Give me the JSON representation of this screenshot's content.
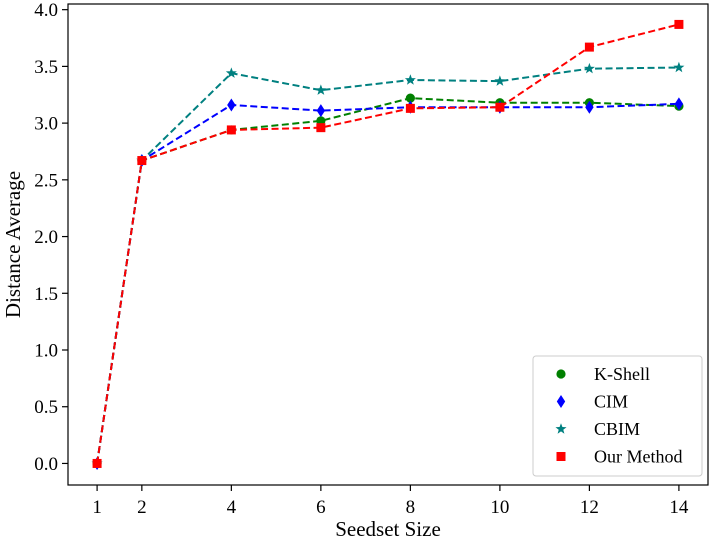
{
  "chart_data": {
    "type": "line",
    "title": "",
    "xlabel": "Seedset Size",
    "ylabel": "Distance Average",
    "x": [
      1,
      2,
      4,
      6,
      8,
      10,
      12,
      14
    ],
    "xticks": [
      "1",
      "2",
      "4",
      "6",
      "8",
      "10",
      "12",
      "14"
    ],
    "yticks": [
      "0.0",
      "0.5",
      "1.0",
      "1.5",
      "2.0",
      "2.5",
      "3.0",
      "3.5",
      "4.0"
    ],
    "xlim": [
      0.35,
      14.65
    ],
    "ylim": [
      -0.19,
      4.05
    ],
    "grid": false,
    "legend_position": "bottom-right",
    "series": [
      {
        "name": "K-Shell",
        "color": "#008000",
        "marker": "circle",
        "values": [
          0.0,
          2.67,
          2.94,
          3.02,
          3.22,
          3.18,
          3.18,
          3.15
        ]
      },
      {
        "name": "CIM",
        "color": "#0000ff",
        "marker": "diamond",
        "values": [
          0.0,
          2.67,
          3.16,
          3.11,
          3.14,
          3.14,
          3.14,
          3.17
        ]
      },
      {
        "name": "CBIM",
        "color": "#008080",
        "marker": "star",
        "values": [
          0.0,
          2.67,
          3.44,
          3.29,
          3.38,
          3.37,
          3.48,
          3.49
        ]
      },
      {
        "name": "Our Method",
        "color": "#ff0000",
        "marker": "square",
        "values": [
          0.0,
          2.67,
          2.94,
          2.96,
          3.13,
          3.14,
          3.67,
          3.87
        ]
      }
    ]
  }
}
